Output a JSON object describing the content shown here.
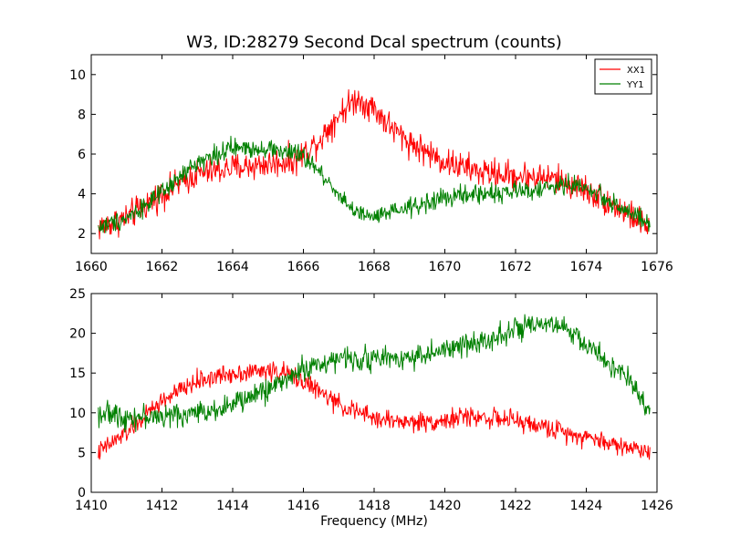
{
  "figure": {
    "title": "W3, ID:28279 Second Dcal spectrum (counts)",
    "xlabel": "Frequency (MHz)"
  },
  "colors": {
    "XX1": "#ff0000",
    "YY1": "#008000"
  },
  "chart_data": [
    {
      "type": "line",
      "title": "W3, ID:28279 Second Dcal spectrum (counts)",
      "xlabel": "",
      "ylabel": "",
      "xlim": [
        1660,
        1676
      ],
      "ylim": [
        1,
        11
      ],
      "xticks": [
        1660,
        1662,
        1664,
        1666,
        1668,
        1670,
        1672,
        1674,
        1676
      ],
      "yticks": [
        2,
        4,
        6,
        8,
        10
      ],
      "grid": false,
      "legend": "top-right",
      "series": [
        {
          "name": "XX1",
          "color": "#ff0000",
          "noise": 0.45,
          "x": [
            1660.2,
            1661.0,
            1662.0,
            1663.0,
            1664.0,
            1665.0,
            1665.8,
            1666.5,
            1667.0,
            1667.5,
            1668.0,
            1668.5,
            1669.0,
            1670.0,
            1671.0,
            1672.0,
            1673.0,
            1674.0,
            1675.0,
            1675.8
          ],
          "y": [
            2.3,
            2.8,
            4.0,
            5.0,
            5.3,
            5.5,
            5.7,
            6.8,
            8.0,
            8.8,
            8.3,
            7.3,
            6.6,
            5.6,
            5.1,
            4.9,
            4.8,
            4.2,
            3.2,
            2.3
          ]
        },
        {
          "name": "YY1",
          "color": "#008000",
          "noise": 0.3,
          "x": [
            1660.2,
            1661.0,
            1662.0,
            1663.0,
            1664.0,
            1665.0,
            1666.0,
            1666.5,
            1667.0,
            1667.5,
            1668.0,
            1669.0,
            1670.0,
            1671.0,
            1672.0,
            1673.0,
            1673.5,
            1674.0,
            1675.0,
            1675.8
          ],
          "y": [
            2.3,
            2.8,
            4.0,
            5.6,
            6.3,
            6.3,
            5.9,
            5.0,
            4.0,
            3.0,
            2.8,
            3.3,
            3.8,
            4.0,
            4.1,
            4.3,
            4.5,
            4.3,
            3.3,
            2.4
          ]
        }
      ]
    },
    {
      "type": "line",
      "xlabel": "Frequency (MHz)",
      "ylabel": "",
      "xlim": [
        1410,
        1426
      ],
      "ylim": [
        0,
        25
      ],
      "xticks": [
        1410,
        1412,
        1414,
        1416,
        1418,
        1420,
        1422,
        1424,
        1426
      ],
      "yticks": [
        0,
        5,
        10,
        15,
        20,
        25
      ],
      "grid": false,
      "series": [
        {
          "name": "XX1",
          "color": "#ff0000",
          "noise": 0.75,
          "x": [
            1410.2,
            1411.0,
            1412.0,
            1413.0,
            1414.0,
            1415.0,
            1415.5,
            1416.0,
            1417.0,
            1418.0,
            1419.0,
            1420.0,
            1420.5,
            1421.0,
            1422.0,
            1423.0,
            1424.0,
            1425.0,
            1425.8
          ],
          "y": [
            5.0,
            7.5,
            11.5,
            14.0,
            15.0,
            15.3,
            15.0,
            14.0,
            11.0,
            9.3,
            8.8,
            9.0,
            9.5,
            9.5,
            9.0,
            8.0,
            7.0,
            5.8,
            5.2
          ]
        },
        {
          "name": "YY1",
          "color": "#008000",
          "noise": 0.9,
          "x": [
            1410.2,
            1411.0,
            1412.0,
            1413.0,
            1414.0,
            1415.0,
            1416.0,
            1417.0,
            1418.0,
            1419.0,
            1420.0,
            1421.0,
            1422.0,
            1423.0,
            1423.5,
            1424.0,
            1425.0,
            1425.8
          ],
          "y": [
            10.0,
            9.5,
            9.5,
            10.0,
            11.0,
            13.0,
            15.5,
            16.8,
            16.8,
            17.0,
            17.8,
            19.0,
            20.5,
            21.0,
            20.5,
            18.5,
            15.0,
            10.5
          ]
        }
      ]
    }
  ]
}
